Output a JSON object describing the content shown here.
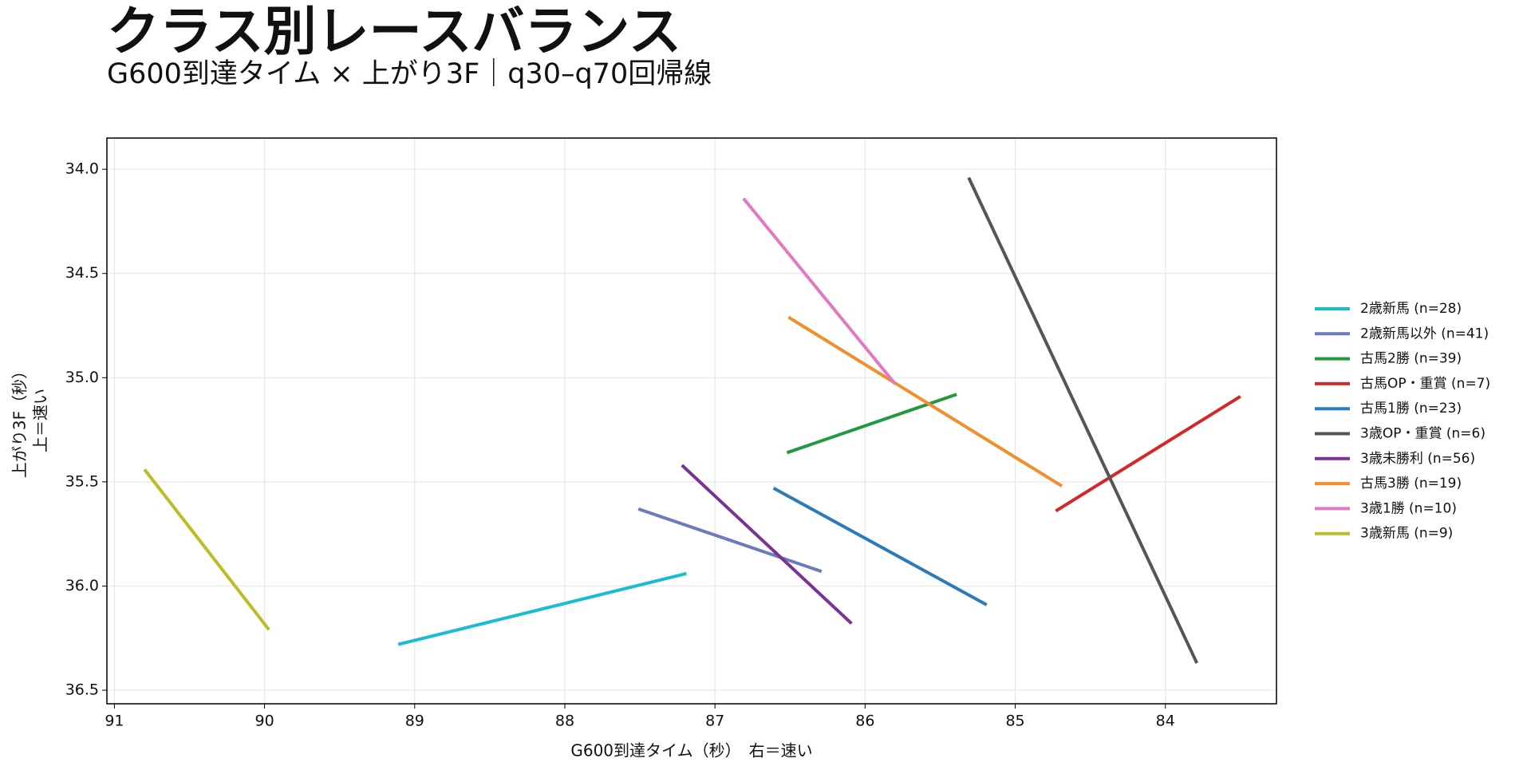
{
  "chart_data": {
    "type": "line",
    "title": "クラス別レースバランス",
    "subtitle": "G600到達タイム × 上がり3F｜q30–q70回帰線",
    "xlabel": "G600到達タイム（秒）　右＝速い",
    "ylabel": [
      "上がり3F（秒）",
      "上＝速い"
    ],
    "xlim": [
      91.05,
      83.26
    ],
    "ylim": [
      36.565,
      33.85
    ],
    "xticks": [
      91,
      90,
      89,
      88,
      87,
      86,
      85,
      84
    ],
    "yticks": [
      {
        "value": 34,
        "label": "34.0"
      },
      34.5,
      {
        "value": 35,
        "label": "35.0"
      },
      35.5,
      {
        "value": 36,
        "label": "36.0"
      },
      36.5
    ],
    "grid": true,
    "legend": "outside-right",
    "series": [
      {
        "name": "2歳新馬 (n=28)",
        "color": "#17becf",
        "x": [
          89.11,
          87.19
        ],
        "values": [
          36.28,
          35.94
        ]
      },
      {
        "name": "2歳新馬以外 (n=41)",
        "color": "#6b7bbf",
        "x": [
          87.51,
          86.29
        ],
        "values": [
          35.63,
          35.93
        ]
      },
      {
        "name": "古馬2勝 (n=39)",
        "color": "#1f9a3d",
        "x": [
          86.52,
          85.39
        ],
        "values": [
          35.36,
          35.08
        ]
      },
      {
        "name": "古馬OP・重賞 (n=7)",
        "color": "#d62728",
        "x": [
          84.73,
          83.5
        ],
        "values": [
          35.64,
          35.09
        ]
      },
      {
        "name": "古馬1勝 (n=23)",
        "color": "#2b7bba",
        "x": [
          86.61,
          85.19
        ],
        "values": [
          35.53,
          36.09
        ]
      },
      {
        "name": "3歳OP・重賞 (n=6)",
        "color": "#555555",
        "x": [
          85.31,
          83.79
        ],
        "values": [
          34.04,
          36.37
        ]
      },
      {
        "name": "3歳未勝利 (n=56)",
        "color": "#7b3294",
        "x": [
          87.22,
          86.09
        ],
        "values": [
          35.42,
          36.18
        ]
      },
      {
        "name": "古馬3勝 (n=19)",
        "color": "#f28e2b",
        "x": [
          86.51,
          84.69
        ],
        "values": [
          34.71,
          35.52
        ]
      },
      {
        "name": "3歳1勝 (n=10)",
        "color": "#e377c2",
        "x": [
          86.81,
          85.8
        ],
        "values": [
          34.14,
          35.03
        ]
      },
      {
        "name": "3歳新馬 (n=9)",
        "color": "#bcbd22",
        "x": [
          90.8,
          89.97
        ],
        "values": [
          35.44,
          36.21
        ]
      }
    ]
  }
}
